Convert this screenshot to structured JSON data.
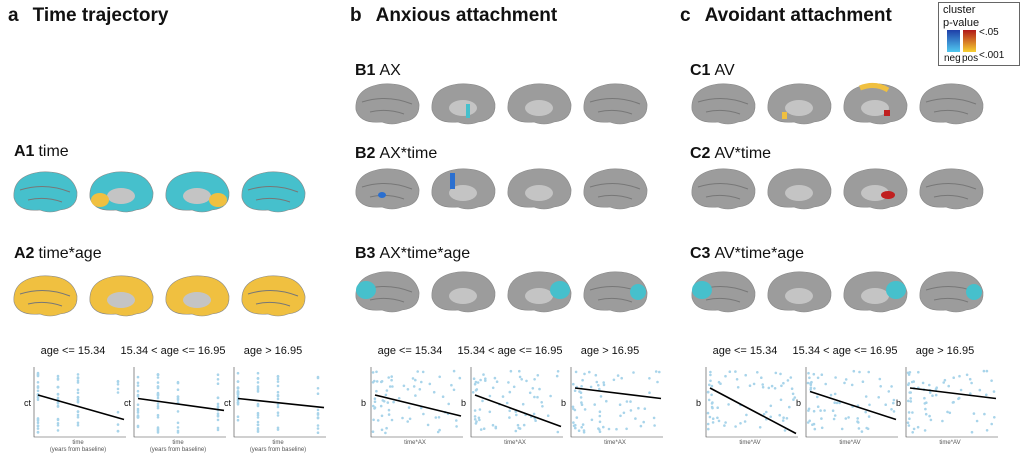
{
  "panels": {
    "a": {
      "letter": "a",
      "title": "Time trajectory",
      "rows": [
        {
          "id": "A1",
          "label": "time"
        },
        {
          "id": "A2",
          "label": "time*age"
        }
      ]
    },
    "b": {
      "letter": "b",
      "title": "Anxious attachment",
      "rows": [
        {
          "id": "B1",
          "label": "AX"
        },
        {
          "id": "B2",
          "label": "AX*time"
        },
        {
          "id": "B3",
          "label": "AX*time*age"
        }
      ]
    },
    "c": {
      "letter": "c",
      "title": "Avoidant attachment",
      "rows": [
        {
          "id": "C1",
          "label": "AV"
        },
        {
          "id": "C2",
          "label": "AV*time"
        },
        {
          "id": "C3",
          "label": "AV*time*age"
        }
      ]
    }
  },
  "legend": {
    "title1": "cluster",
    "title2": "p-value",
    "high": "<.05",
    "low": "<.001",
    "neg": "neg",
    "pos": "pos",
    "neg_color": "#2a6fd0",
    "pos_color": "#d83020"
  },
  "colors": {
    "cortex": "#9c9c9c",
    "sig_neg": "#46c0cc",
    "sig_pos": "#f0c040",
    "points": "#a8d4ea",
    "line": "#000000"
  },
  "chart_data": [
    {
      "type": "scatter",
      "panel": "a",
      "title": "age <= 15.34",
      "xlabel": "time",
      "xsublabel": "(years from baseline)",
      "ylabel": "ct",
      "xticks": [
        0,
        1,
        2,
        4
      ],
      "fit": [
        0.6,
        0.25
      ]
    },
    {
      "type": "scatter",
      "panel": "a",
      "title": "15.34 < age <= 16.95",
      "xlabel": "time",
      "xsublabel": "(years from baseline)",
      "ylabel": "ct",
      "xticks": [
        0,
        1,
        2,
        4
      ],
      "fit": [
        0.55,
        0.38
      ]
    },
    {
      "type": "scatter",
      "panel": "a",
      "title": "age > 16.95",
      "xlabel": "time",
      "xsublabel": "(years from baseline)",
      "ylabel": "ct",
      "xticks": [
        0,
        1,
        2,
        4
      ],
      "fit": [
        0.55,
        0.42
      ]
    },
    {
      "type": "scatter",
      "panel": "b",
      "title": "age <= 15.34",
      "xlabel": "time*AX",
      "ylabel": "b",
      "fit": [
        0.6,
        0.3
      ]
    },
    {
      "type": "scatter",
      "panel": "b",
      "title": "15.34 < age <= 16.95",
      "xlabel": "time*AX",
      "ylabel": "b",
      "fit": [
        0.6,
        0.15
      ]
    },
    {
      "type": "scatter",
      "panel": "b",
      "title": "age > 16.95",
      "xlabel": "time*AX",
      "ylabel": "b",
      "fit": [
        0.7,
        0.55
      ]
    },
    {
      "type": "scatter",
      "panel": "c",
      "title": "age <= 15.34",
      "xlabel": "time*AV",
      "ylabel": "b",
      "fit": [
        0.7,
        0.05
      ]
    },
    {
      "type": "scatter",
      "panel": "c",
      "title": "15.34 < age <= 16.95",
      "xlabel": "time*AV",
      "ylabel": "b",
      "fit": [
        0.65,
        0.25
      ]
    },
    {
      "type": "scatter",
      "panel": "c",
      "title": "age > 16.95",
      "xlabel": "time*AV",
      "ylabel": "b",
      "fit": [
        0.7,
        0.55
      ]
    }
  ]
}
